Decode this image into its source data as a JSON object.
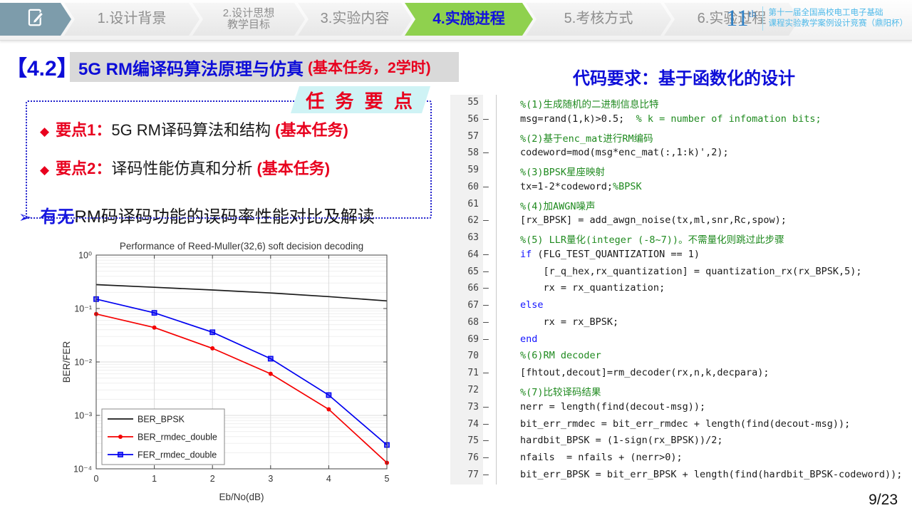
{
  "nav": {
    "tabs": [
      {
        "label": "1.设计背景"
      },
      {
        "label": "2.设计思想\n教学目标"
      },
      {
        "label": "3.实验内容"
      },
      {
        "label": "4.实施进程"
      },
      {
        "label": "5.考核方式"
      },
      {
        "label": "6.实验过程"
      }
    ],
    "badge": {
      "number": "11",
      "suffix": "th",
      "line1": "第十一届全国高校电工电子基础",
      "line2": "课程实验教学案例设计竞赛（鼎阳杯）"
    }
  },
  "header": {
    "section_no": "【4.2】",
    "title": "5G RM编译码算法原理与仿真",
    "suffix": "(基本任务，2学时)"
  },
  "right_panel": {
    "header": "代码要求：基于函数化的设计"
  },
  "tasks": {
    "badge": "任 务 要 点",
    "items": [
      {
        "bullet": "◆",
        "label": "要点1：",
        "text": "5G RM译码算法和结构 ",
        "suffix": "(基本任务)"
      },
      {
        "bullet": "◆",
        "label": "要点2：",
        "text": "译码性能仿真和分析 ",
        "suffix": "(基本任务)"
      }
    ]
  },
  "highlight": {
    "arrow": "➢",
    "em": "有无",
    "text": "RM码译码功能的误码率性能对比及解读"
  },
  "footer": {
    "page": "9/23"
  },
  "code": {
    "lines": [
      {
        "num": "55",
        "dash": false,
        "segments": [
          {
            "t": "%(1)生成随机的二进制信息比特",
            "c": "cm"
          }
        ]
      },
      {
        "num": "56",
        "dash": true,
        "segments": [
          {
            "t": "msg=rand(1,k)>0.5;",
            "c": "tx"
          },
          {
            "t": "  % k = number of infomation bits;",
            "c": "cm"
          }
        ]
      },
      {
        "num": "57",
        "dash": false,
        "segments": [
          {
            "t": "%(2)基于enc_mat进行RM编码",
            "c": "cm"
          }
        ]
      },
      {
        "num": "58",
        "dash": true,
        "segments": [
          {
            "t": "codeword=mod(msg*enc_mat(:,1:k)',2);",
            "c": "tx"
          }
        ]
      },
      {
        "num": "59",
        "dash": false,
        "segments": [
          {
            "t": "%(3)BPSK星座映射",
            "c": "cm"
          }
        ]
      },
      {
        "num": "60",
        "dash": true,
        "segments": [
          {
            "t": "tx=1-2*codeword;",
            "c": "tx"
          },
          {
            "t": "%BPSK",
            "c": "cm"
          }
        ]
      },
      {
        "num": "61",
        "dash": false,
        "segments": [
          {
            "t": "%(4)加AWGN噪声",
            "c": "cm"
          }
        ]
      },
      {
        "num": "62",
        "dash": true,
        "segments": [
          {
            "t": "[rx_BPSK] = add_awgn_noise(tx,ml,snr,Rc,spow);",
            "c": "tx"
          }
        ]
      },
      {
        "num": "63",
        "dash": false,
        "segments": [
          {
            "t": "%(5) LLR量化(integer (-8~7))。不需量化则跳过此步骤",
            "c": "cm"
          }
        ]
      },
      {
        "num": "64",
        "dash": true,
        "segments": [
          {
            "t": "if",
            "c": "kw"
          },
          {
            "t": " (FLG_TEST_QUANTIZATION == 1)",
            "c": "tx"
          }
        ]
      },
      {
        "num": "65",
        "dash": true,
        "segments": [
          {
            "t": "    [r_q_hex,rx_quantization] = quantization_rx(rx_BPSK,5);",
            "c": "tx"
          }
        ]
      },
      {
        "num": "66",
        "dash": true,
        "segments": [
          {
            "t": "    rx = rx_quantization;",
            "c": "tx"
          }
        ]
      },
      {
        "num": "67",
        "dash": true,
        "segments": [
          {
            "t": "else",
            "c": "kw"
          }
        ]
      },
      {
        "num": "68",
        "dash": true,
        "segments": [
          {
            "t": "    rx = rx_BPSK;",
            "c": "tx"
          }
        ]
      },
      {
        "num": "69",
        "dash": true,
        "segments": [
          {
            "t": "end",
            "c": "kw"
          }
        ]
      },
      {
        "num": "70",
        "dash": false,
        "segments": [
          {
            "t": "%(6)RM decoder",
            "c": "cm"
          }
        ]
      },
      {
        "num": "71",
        "dash": true,
        "segments": [
          {
            "t": "[fhtout,decout]=rm_decoder(rx,n,k,decpara);",
            "c": "tx"
          }
        ]
      },
      {
        "num": "72",
        "dash": false,
        "segments": [
          {
            "t": "%(7)比较译码结果",
            "c": "cm"
          }
        ]
      },
      {
        "num": "73",
        "dash": true,
        "segments": [
          {
            "t": "nerr = length(find(decout-msg));",
            "c": "tx"
          }
        ]
      },
      {
        "num": "74",
        "dash": true,
        "segments": [
          {
            "t": "bit_err_rmdec = bit_err_rmdec + length(find(decout-msg));",
            "c": "tx"
          }
        ]
      },
      {
        "num": "75",
        "dash": true,
        "segments": [
          {
            "t": "hardbit_BPSK = (1-sign(rx_BPSK))/2;",
            "c": "tx"
          }
        ]
      },
      {
        "num": "76",
        "dash": true,
        "segments": [
          {
            "t": "nfails  = nfails + (nerr>0);",
            "c": "tx"
          }
        ]
      },
      {
        "num": "77",
        "dash": true,
        "segments": [
          {
            "t": "bit_err_BPSK = bit_err_BPSK + length(find(hardbit_BPSK-codeword));",
            "c": "tx"
          }
        ]
      }
    ]
  },
  "chart_data": {
    "type": "line",
    "title": "Performance of Reed-Muller(32,6) soft decision decoding",
    "xlabel": "Eb/No(dB)",
    "ylabel": "BER/FER",
    "xlim": [
      0,
      5
    ],
    "ylim": [
      0.0001,
      1
    ],
    "ylog": true,
    "grid": true,
    "legend_position": "lower left",
    "xticks": [
      0,
      1,
      2,
      3,
      4,
      5
    ],
    "ytick_labels": [
      "10⁰",
      "10⁻¹",
      "10⁻²",
      "10⁻³",
      "10⁻⁴"
    ],
    "x": [
      0,
      1,
      2,
      3,
      4,
      5
    ],
    "series": [
      {
        "name": "BER_BPSK",
        "color": "#1a1a1a",
        "marker": "none",
        "values": [
          0.28,
          0.25,
          0.222,
          0.195,
          0.167,
          0.139
        ]
      },
      {
        "name": "BER_rmdec_double",
        "color": "#f50000",
        "marker": "dot",
        "values": [
          0.079,
          0.044,
          0.018,
          0.006,
          0.0013,
          0.00013
        ]
      },
      {
        "name": "FER_rmdec_double",
        "color": "#0000f0",
        "marker": "square",
        "values": [
          0.15,
          0.083,
          0.036,
          0.0115,
          0.0024,
          0.00028
        ]
      }
    ]
  }
}
